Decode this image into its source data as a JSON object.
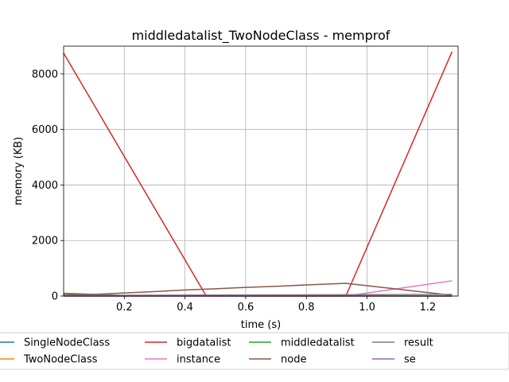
{
  "chart_data": {
    "type": "line",
    "title": "middledatalist_TwoNodeClass - memprof",
    "xlabel": "time (s)",
    "ylabel": "memory (KB)",
    "xlim": [
      0.0,
      1.3
    ],
    "ylim": [
      0,
      9000
    ],
    "xticks": [
      0.2,
      0.4,
      0.6,
      0.8,
      1.0,
      1.2
    ],
    "xtick_labels": [
      "0.2",
      "0.4",
      "0.6",
      "0.8",
      "1.0",
      "1.2"
    ],
    "yticks": [
      0,
      2000,
      4000,
      6000,
      8000
    ],
    "ytick_labels": [
      "0",
      "2000",
      "4000",
      "6000",
      "8000"
    ],
    "grid": true,
    "legend_position": "bottom",
    "series": [
      {
        "name": "SingleNodeClass",
        "color": "#1f77b4",
        "x": [
          0.0,
          1.28
        ],
        "y": [
          0,
          0
        ]
      },
      {
        "name": "TwoNodeClass",
        "color": "#ff7f0e",
        "x": [
          0.0,
          1.28
        ],
        "y": [
          0,
          0
        ]
      },
      {
        "name": "bigdatalist",
        "color": "#d62728",
        "x": [
          0.0,
          0.47,
          0.93,
          1.28
        ],
        "y": [
          8750,
          0,
          0,
          8800
        ]
      },
      {
        "name": "instance",
        "color": "#e377c2",
        "x": [
          0.0,
          0.93,
          1.28
        ],
        "y": [
          0,
          0,
          550
        ]
      },
      {
        "name": "middledatalist",
        "color": "#2ca02c",
        "x": [
          0.0,
          0.1,
          0.2,
          1.28
        ],
        "y": [
          100,
          60,
          20,
          0
        ]
      },
      {
        "name": "node",
        "color": "#8c564b",
        "x": [
          0.0,
          0.1,
          0.2,
          0.3,
          0.4,
          0.5,
          0.6,
          0.7,
          0.8,
          0.93,
          1.1,
          1.28
        ],
        "y": [
          50,
          60,
          110,
          160,
          220,
          260,
          310,
          350,
          400,
          460,
          250,
          30
        ]
      },
      {
        "name": "result",
        "color": "#7f7f7f",
        "x": [
          0.0,
          1.28
        ],
        "y": [
          20,
          60
        ]
      },
      {
        "name": "se",
        "color": "#9467bd",
        "x": [
          0.0,
          1.28
        ],
        "y": [
          0,
          0
        ]
      }
    ]
  }
}
